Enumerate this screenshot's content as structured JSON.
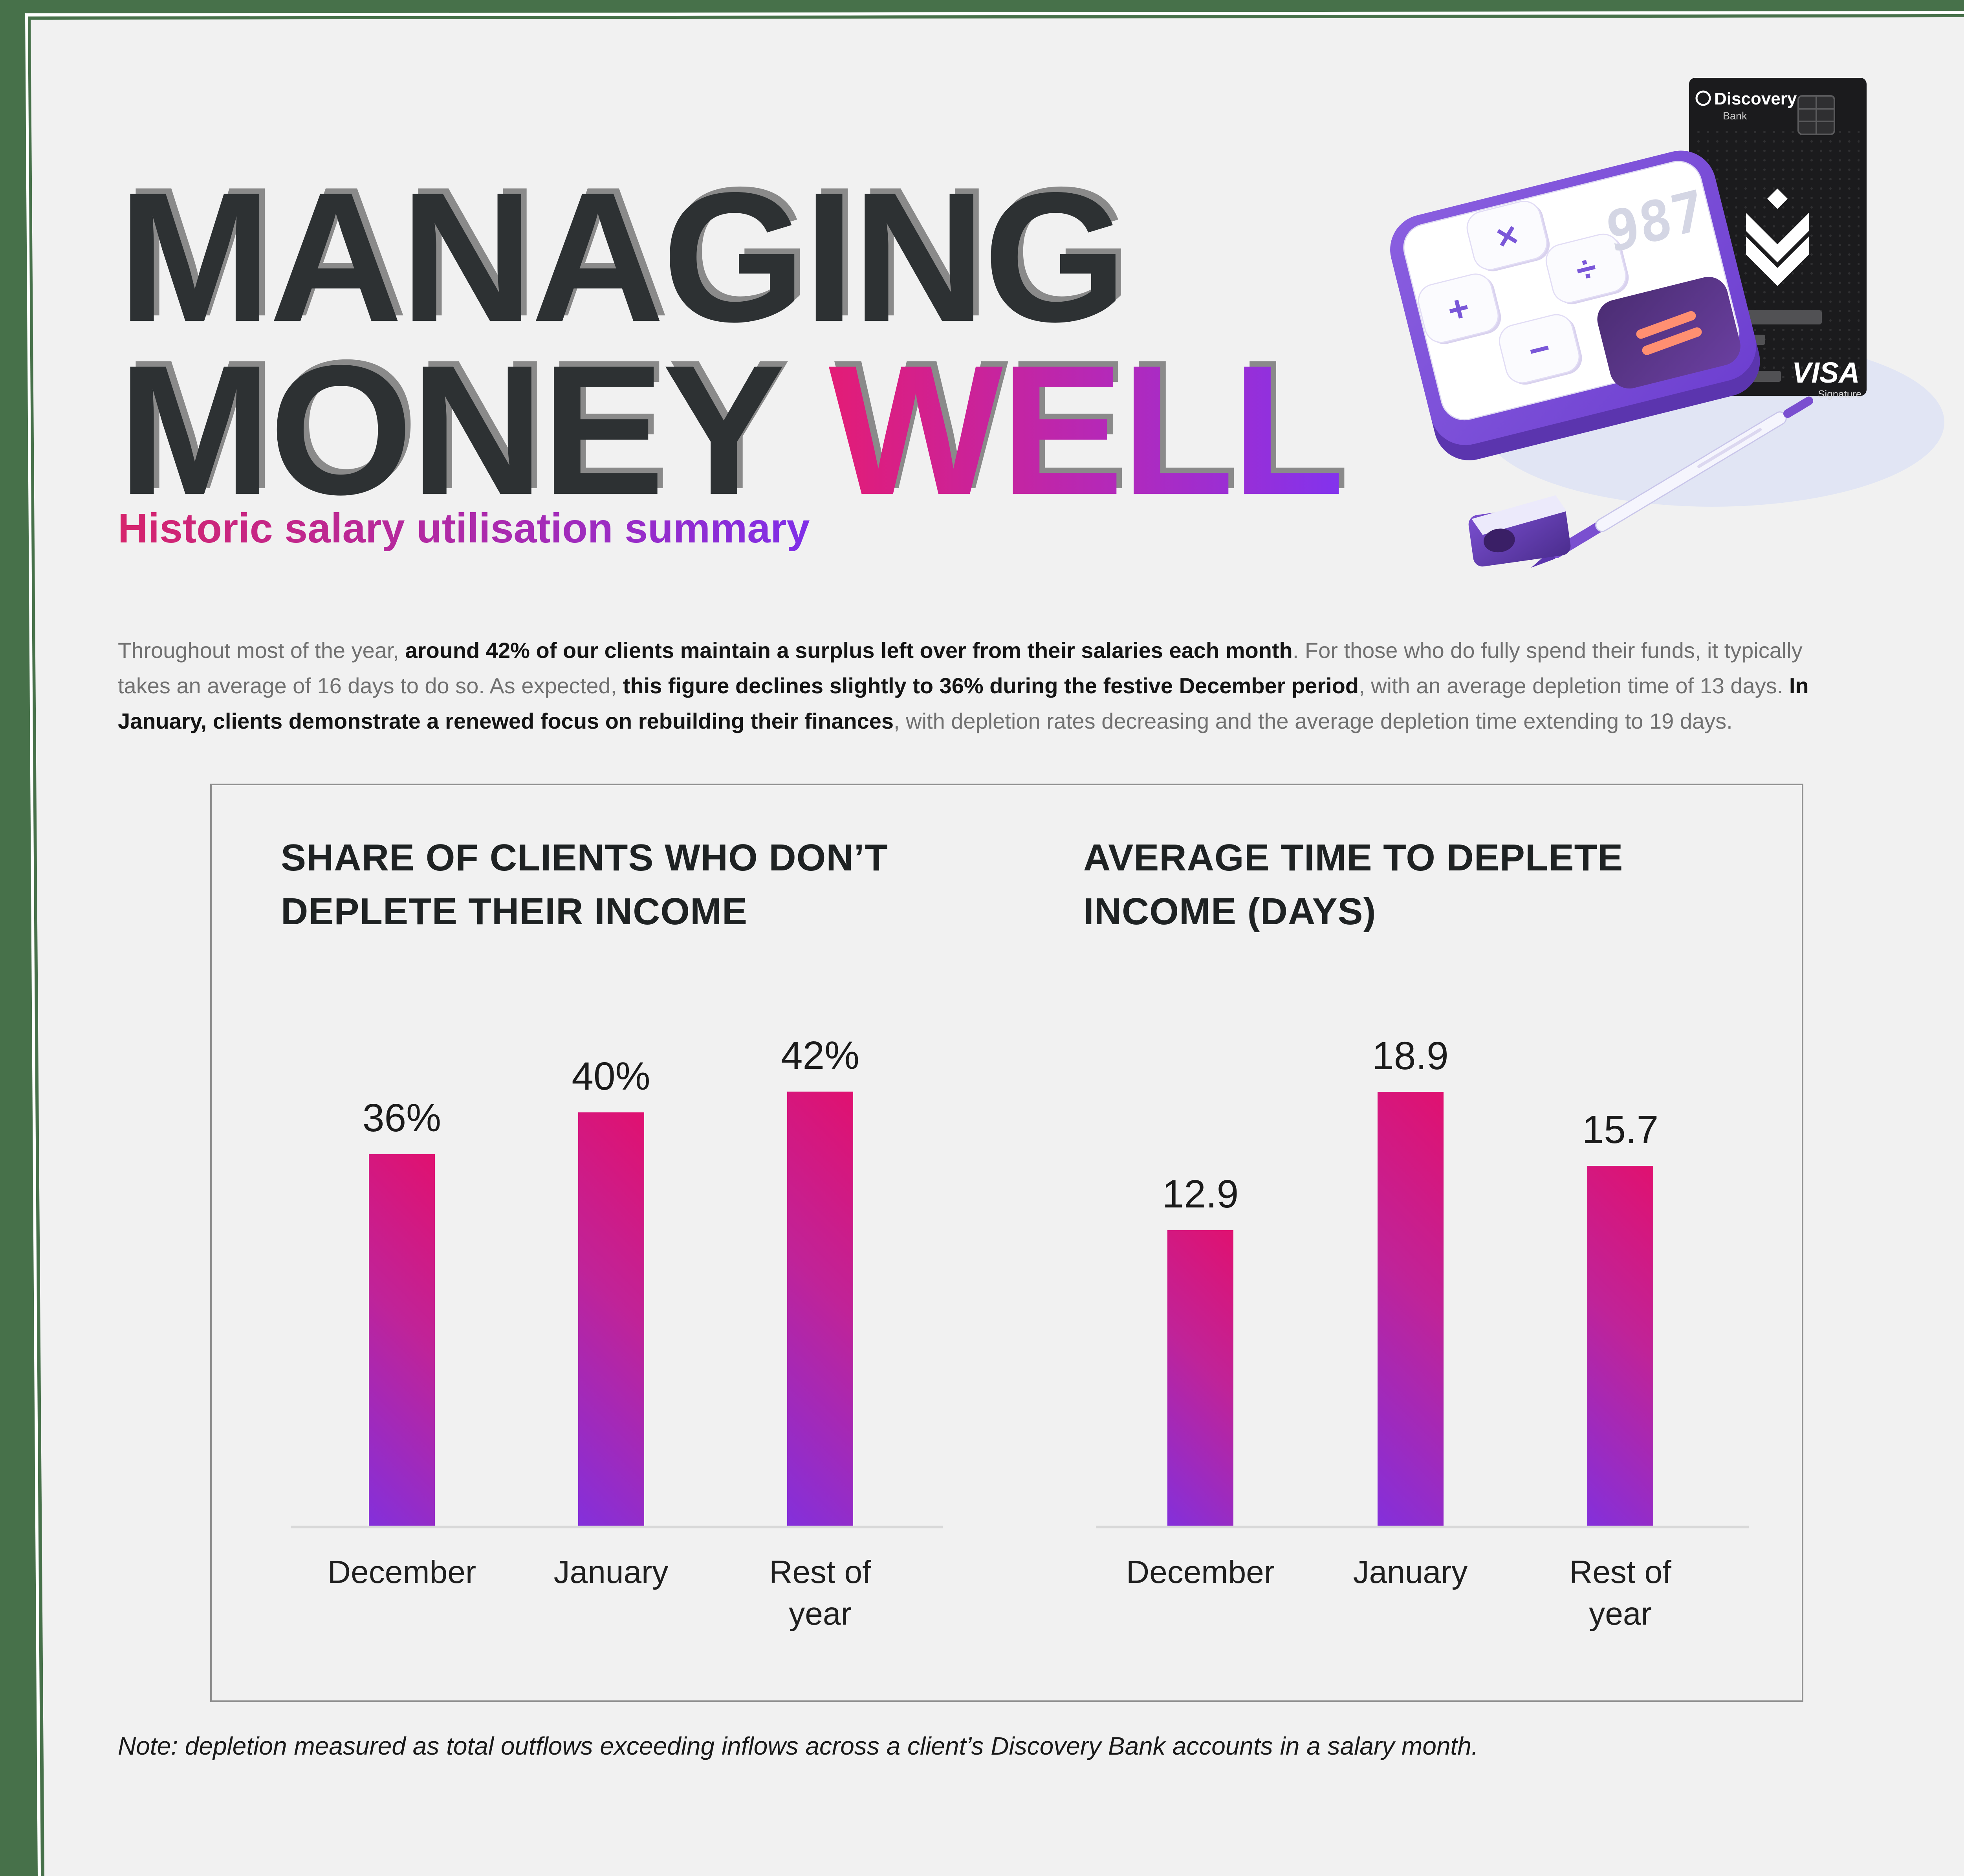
{
  "page": {
    "title_line1": "MANAGING",
    "title_line2_dark": "MONEY ",
    "title_line2_accent": "WELL",
    "subtitle": "Historic salary utilisation summary",
    "intro_segments": [
      {
        "t": "Throughout most of the year, ",
        "b": false
      },
      {
        "t": "around 42% of our clients maintain a surplus left over from their salaries each month",
        "b": true
      },
      {
        "t": ". For those who do fully spend their funds, it typically takes an average of 16 days to do so. As expected, ",
        "b": false
      },
      {
        "t": "this figure declines slightly to 36% during the festive December period",
        "b": true
      },
      {
        "t": ", with an average depletion time of 13 days. ",
        "b": false
      },
      {
        "t": "In January, clients demonstrate a renewed focus on rebuilding their finances",
        "b": true
      },
      {
        "t": ", with depletion rates decreasing and the average depletion time extending to 19 days.",
        "b": false
      }
    ],
    "note_text": "Note: depletion measured as total outflows exceeding inflows across a client’s Discovery Bank accounts in a salary month."
  },
  "chart_data": [
    {
      "type": "bar",
      "title": "SHARE OF CLIENTS WHO DON’T DEPLETE THEIR INCOME",
      "categories": [
        "December",
        "January",
        "Rest of year"
      ],
      "values": [
        36,
        40,
        42
      ],
      "labels": [
        "36%",
        "40%",
        "42%"
      ],
      "unit": "%",
      "ylim": [
        0,
        45
      ],
      "grid": false,
      "legend": "none"
    },
    {
      "type": "bar",
      "title": "AVERAGE TIME TO DEPLETE INCOME (DAYS)",
      "categories": [
        "December",
        "January",
        "Rest of year"
      ],
      "values": [
        12.9,
        18.9,
        15.7
      ],
      "labels": [
        "12.9",
        "18.9",
        "15.7"
      ],
      "unit": "days",
      "ylim": [
        0,
        20
      ],
      "grid": false,
      "legend": "none"
    }
  ],
  "illustration": {
    "card_brand": "Discovery",
    "card_sub": "Bank",
    "card_network": "VISA",
    "card_tier": "Signature",
    "calc_display": "987",
    "key_multiply": "×",
    "key_plus": "+",
    "key_divide": "÷",
    "key_minus": "−"
  },
  "colors": {
    "frame_green": "#47714A",
    "background": "#F1F1F1",
    "title_dark": "#2D3133",
    "title_shadow": "#8A8A8A",
    "bar_gradient_start": "#8330DB",
    "bar_gradient_end": "#E01170",
    "accent_pink": "#E31C76",
    "accent_purple": "#8233EE",
    "axis_gray": "#D8D8D8",
    "panel_border": "#8E8E8E"
  }
}
